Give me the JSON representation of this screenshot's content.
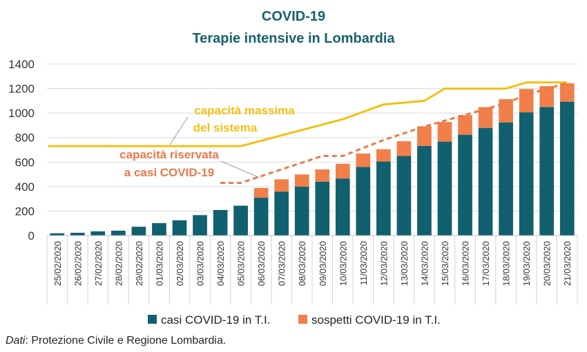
{
  "chart_data": {
    "type": "bar",
    "title_line1": "COVID-19",
    "title_line2": "Terapie intensive in Lombardia",
    "categories": [
      "25/02/2020",
      "26/02/2020",
      "27/02/2020",
      "28/02/2020",
      "29/02/2020",
      "01/03/2020",
      "02/03/2020",
      "03/03/2020",
      "04/03/2020",
      "05/03/2020",
      "06/03/2020",
      "07/03/2020",
      "08/03/2020",
      "09/03/2020",
      "10/03/2020",
      "11/03/2020",
      "12/03/2020",
      "13/03/2020",
      "14/03/2020",
      "15/03/2020",
      "16/03/2020",
      "17/03/2020",
      "18/03/2020",
      "19/03/2020",
      "20/03/2020",
      "21/03/2020"
    ],
    "series": [
      {
        "name": "casi COVID-19 in T.I.",
        "color": "#10606f",
        "values": [
          19,
          23,
          35,
          40,
          72,
          102,
          125,
          167,
          209,
          244,
          309,
          359,
          399,
          440,
          466,
          560,
          605,
          650,
          732,
          767,
          823,
          879,
          924,
          1006,
          1050,
          1093
        ]
      },
      {
        "name": "sospetti COVID-19 in T.I.",
        "color": "#f07f4a",
        "values": [
          0,
          0,
          0,
          0,
          0,
          0,
          0,
          0,
          0,
          0,
          80,
          100,
          100,
          100,
          120,
          110,
          100,
          120,
          160,
          160,
          160,
          170,
          190,
          190,
          170,
          150
        ]
      }
    ],
    "lines": [
      {
        "label_line1": "capacità massima",
        "label_line2": "del sistema",
        "color": "#f2c014",
        "style": "solid",
        "values": [
          null,
          null,
          null,
          null,
          null,
          null,
          null,
          null,
          null,
          730,
          null,
          null,
          null,
          null,
          950,
          null,
          1070,
          null,
          1100,
          1200,
          null,
          null,
          1200,
          1250,
          null,
          1250
        ]
      },
      {
        "label_line1": "capacità riservata",
        "label_line2": "a casi COVID-19",
        "color": "#e8794a",
        "style": "dashed",
        "values": [
          null,
          null,
          null,
          null,
          null,
          null,
          null,
          null,
          null,
          430,
          null,
          null,
          null,
          650,
          650,
          null,
          780,
          null,
          890,
          null,
          null,
          null,
          1080,
          1150,
          null,
          1245
        ]
      }
    ],
    "ylim": [
      0,
      1400
    ],
    "yticks": [
      "0",
      "200",
      "400",
      "600",
      "800",
      "1000",
      "1200",
      "1400"
    ],
    "grid": true,
    "legend_position": "bottom"
  },
  "source": {
    "label": "Dati",
    "text": ": Protezione Civile e Regione Lombardia."
  }
}
